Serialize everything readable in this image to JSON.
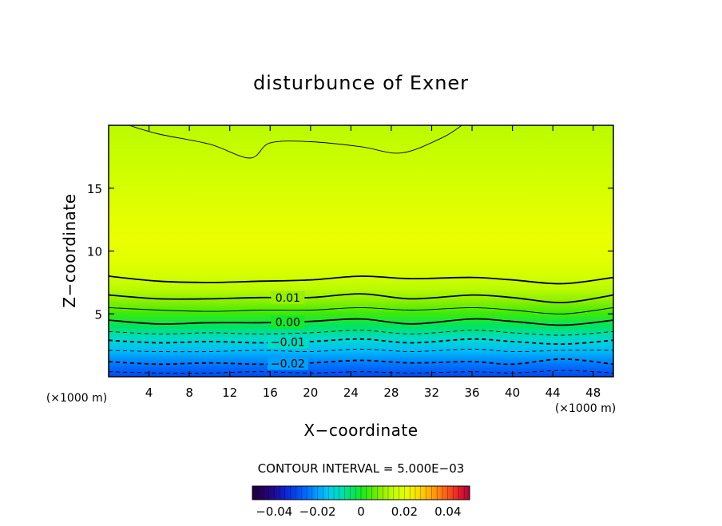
{
  "chart_data": {
    "type": "heatmap",
    "title": "disturbunce of Exner",
    "xlabel": "X−coordinate",
    "ylabel": "Z−coordinate",
    "x_unit": "(×1000 m)",
    "y_unit": "(×1000 m)",
    "xlim": [
      0,
      50
    ],
    "ylim": [
      0,
      20
    ],
    "x_ticks": [
      4,
      8,
      12,
      16,
      20,
      24,
      28,
      32,
      36,
      40,
      44,
      48
    ],
    "y_ticks": [
      5,
      10,
      15
    ],
    "contour_interval_text": "CONTOUR INTERVAL = 5.000E−03",
    "contour_interval": 0.005,
    "contour_labels": [
      {
        "text": "0.01",
        "value": 0.01
      },
      {
        "text": "0.00",
        "value": 0.0
      },
      {
        "text": "−0.01",
        "value": -0.01
      },
      {
        "text": "−0.02",
        "value": -0.02
      }
    ],
    "colorbar": {
      "range": [
        -0.05,
        0.05
      ],
      "ticks": [
        {
          "text": "−0.04",
          "value": -0.04
        },
        {
          "text": "−0.02",
          "value": -0.02
        },
        {
          "text": "0",
          "value": 0
        },
        {
          "text": "0.02",
          "value": 0.02
        },
        {
          "text": "0.04",
          "value": 0.04
        }
      ]
    },
    "field_profile": {
      "z": [
        0,
        1,
        2,
        3,
        4,
        5,
        6,
        7,
        8,
        9,
        10,
        11,
        12,
        13,
        14,
        15,
        16,
        17,
        18,
        19,
        20
      ],
      "value": [
        -0.03,
        -0.024,
        -0.017,
        -0.011,
        -0.004,
        0.003,
        0.009,
        0.014,
        0.017,
        0.019,
        0.0205,
        0.021,
        0.0205,
        0.0195,
        0.0185,
        0.0175,
        0.0165,
        0.0158,
        0.0152,
        0.0146,
        0.014
      ]
    },
    "contours": [
      {
        "value": 0.015,
        "x": [
          2,
          5,
          10,
          14,
          16,
          20,
          25,
          29,
          33,
          35
        ],
        "z": [
          20,
          19.3,
          18.5,
          17.4,
          18.6,
          18.7,
          18.3,
          17.8,
          19.0,
          20
        ]
      },
      {
        "value": 0.01,
        "x": [
          0,
          5,
          10,
          15,
          20,
          25,
          30,
          36,
          40,
          45,
          50
        ],
        "z": [
          8.0,
          7.6,
          7.5,
          7.6,
          7.7,
          8.0,
          7.8,
          7.9,
          7.7,
          7.4,
          7.9
        ]
      },
      {
        "value": 0.01,
        "x": [
          0,
          5,
          10,
          15,
          20,
          25,
          30,
          36,
          40,
          45,
          50
        ],
        "z": [
          6.5,
          6.2,
          6.2,
          6.3,
          6.3,
          6.6,
          6.2,
          6.5,
          6.3,
          5.9,
          6.5
        ]
      },
      {
        "value": 0.005,
        "x": [
          0,
          5,
          10,
          15,
          20,
          25,
          30,
          36,
          40,
          45,
          50
        ],
        "z": [
          5.5,
          5.3,
          5.2,
          5.3,
          5.3,
          5.5,
          5.3,
          5.5,
          5.3,
          5.0,
          5.5
        ]
      },
      {
        "value": 0.0,
        "x": [
          0,
          5,
          10,
          15,
          20,
          25,
          30,
          36,
          40,
          45,
          50
        ],
        "z": [
          4.5,
          4.2,
          4.3,
          4.3,
          4.4,
          4.6,
          4.2,
          4.6,
          4.4,
          4.1,
          4.5
        ]
      },
      {
        "value": -0.005,
        "x": [
          0,
          5,
          10,
          15,
          20,
          25,
          30,
          36,
          40,
          45,
          50
        ],
        "z": [
          3.6,
          3.4,
          3.5,
          3.4,
          3.5,
          3.7,
          3.4,
          3.7,
          3.5,
          3.3,
          3.6
        ]
      },
      {
        "value": -0.01,
        "x": [
          0,
          5,
          10,
          15,
          20,
          25,
          30,
          36,
          40,
          45,
          50
        ],
        "z": [
          2.9,
          2.7,
          2.8,
          2.7,
          2.8,
          3.0,
          2.7,
          3.0,
          2.8,
          2.6,
          2.9
        ]
      },
      {
        "value": -0.015,
        "x": [
          0,
          5,
          10,
          15,
          20,
          25,
          30,
          36,
          40,
          45,
          50
        ],
        "z": [
          2.1,
          2.0,
          2.0,
          2.1,
          2.0,
          2.2,
          2.0,
          2.2,
          2.0,
          2.1,
          2.1
        ]
      },
      {
        "value": -0.02,
        "x": [
          0,
          5,
          10,
          15,
          20,
          25,
          30,
          36,
          40,
          45,
          50
        ],
        "z": [
          1.2,
          1.0,
          1.1,
          1.0,
          1.1,
          1.3,
          1.1,
          1.2,
          1.0,
          1.4,
          1.0
        ]
      },
      {
        "value": -0.025,
        "x": [
          0,
          5,
          10,
          15,
          20,
          25,
          30,
          36,
          40,
          45,
          50
        ],
        "z": [
          0.4,
          0.3,
          0.3,
          0.4,
          0.3,
          0.4,
          0.3,
          0.4,
          0.3,
          0.5,
          0.3
        ]
      }
    ]
  }
}
